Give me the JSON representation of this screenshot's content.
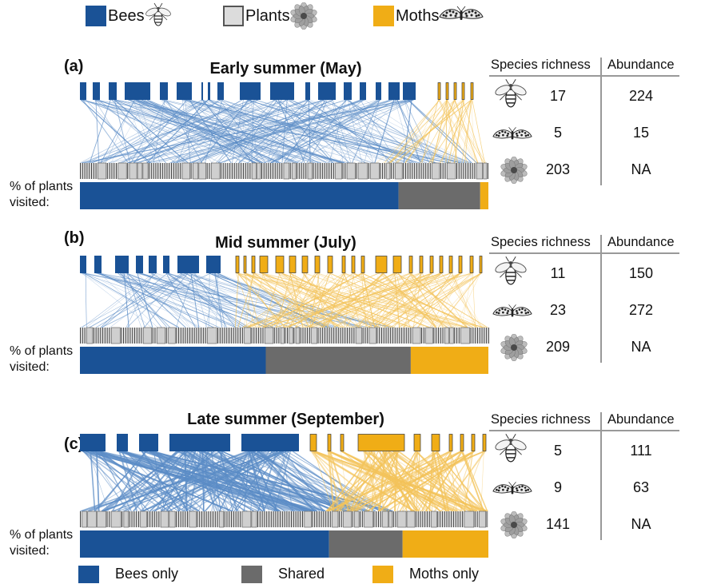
{
  "colors": {
    "bees": "#1a5296",
    "shared": "#6b6b6b",
    "moths": "#f0ad16",
    "plants_fill": "#dcdcdc",
    "bee_line": "#5b8cc6",
    "moth_line": "#f3c35a"
  },
  "legend": {
    "bees": "Bees",
    "plants": "Plants",
    "moths": "Moths",
    "icons": {
      "bees": "bee-icon",
      "plants": "flower-icon",
      "moths": "moth-icon"
    }
  },
  "table_headers": {
    "richness": "Species richness",
    "abundance": "Abundance"
  },
  "pct_label": "% of plants visited:",
  "panels": [
    {
      "label": "(a)",
      "title": "Early summer (May)",
      "rows": [
        {
          "icon": "bee-icon",
          "richness": "17",
          "abundance": "224"
        },
        {
          "icon": "moth-icon",
          "richness": "5",
          "abundance": "15"
        },
        {
          "icon": "flower-icon",
          "richness": "203",
          "abundance": "NA"
        }
      ],
      "visited": {
        "bees_only": 0.78,
        "shared": 0.2,
        "moths_only": 0.02
      }
    },
    {
      "label": "(b)",
      "title": "Mid summer (July)",
      "rows": [
        {
          "icon": "bee-icon",
          "richness": "11",
          "abundance": "150"
        },
        {
          "icon": "moth-icon",
          "richness": "23",
          "abundance": "272"
        },
        {
          "icon": "flower-icon",
          "richness": "209",
          "abundance": "NA"
        }
      ],
      "visited": {
        "bees_only": 0.455,
        "shared": 0.355,
        "moths_only": 0.19
      }
    },
    {
      "label": "(c)",
      "title": "Late summer (September)",
      "rows": [
        {
          "icon": "bee-icon",
          "richness": "5",
          "abundance": "111"
        },
        {
          "icon": "moth-icon",
          "richness": "9",
          "abundance": "63"
        },
        {
          "icon": "flower-icon",
          "richness": "141",
          "abundance": "NA"
        }
      ],
      "visited": {
        "bees_only": 0.61,
        "shared": 0.18,
        "moths_only": 0.21
      }
    }
  ],
  "bottom_legend": {
    "bees_only": "Bees only",
    "shared": "Shared",
    "moths_only": "Moths only"
  }
}
